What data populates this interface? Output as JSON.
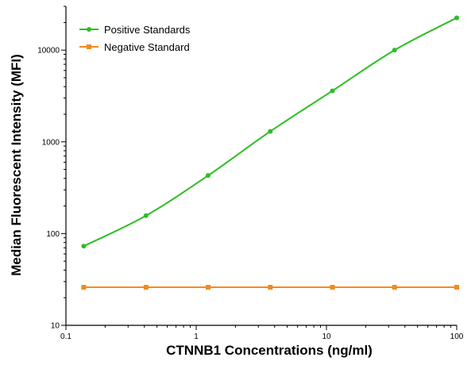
{
  "chart_data": {
    "type": "line",
    "title": "",
    "xlabel": "CTNNB1 Concentrations (ng/ml)",
    "ylabel": "Median  Fluorescent Intensity  (MFI)",
    "x_scale": "log",
    "y_scale": "log",
    "xlim": [
      0.1,
      100
    ],
    "ylim": [
      10,
      30000
    ],
    "x_ticks": [
      0.1,
      1,
      10,
      100
    ],
    "x_tick_labels": [
      "0.1",
      "1",
      "10",
      "100"
    ],
    "y_ticks": [
      10,
      100,
      1000,
      10000
    ],
    "y_tick_labels": [
      "10",
      "100",
      "1000",
      "10000"
    ],
    "grid": false,
    "legend_position": "top-left",
    "series": [
      {
        "name": "Positive Standards",
        "color": "#2dbe24",
        "marker": "circle",
        "x": [
          0.137,
          0.412,
          1.235,
          3.704,
          11.11,
          33.33,
          100
        ],
        "y": [
          73,
          157,
          430,
          1300,
          3600,
          10000,
          22500
        ]
      },
      {
        "name": "Negative Standard",
        "color": "#f48a1c",
        "marker": "square",
        "x": [
          0.137,
          0.412,
          1.235,
          3.704,
          11.11,
          33.33,
          100
        ],
        "y": [
          26,
          26,
          26,
          26,
          26,
          26,
          26
        ]
      }
    ]
  }
}
